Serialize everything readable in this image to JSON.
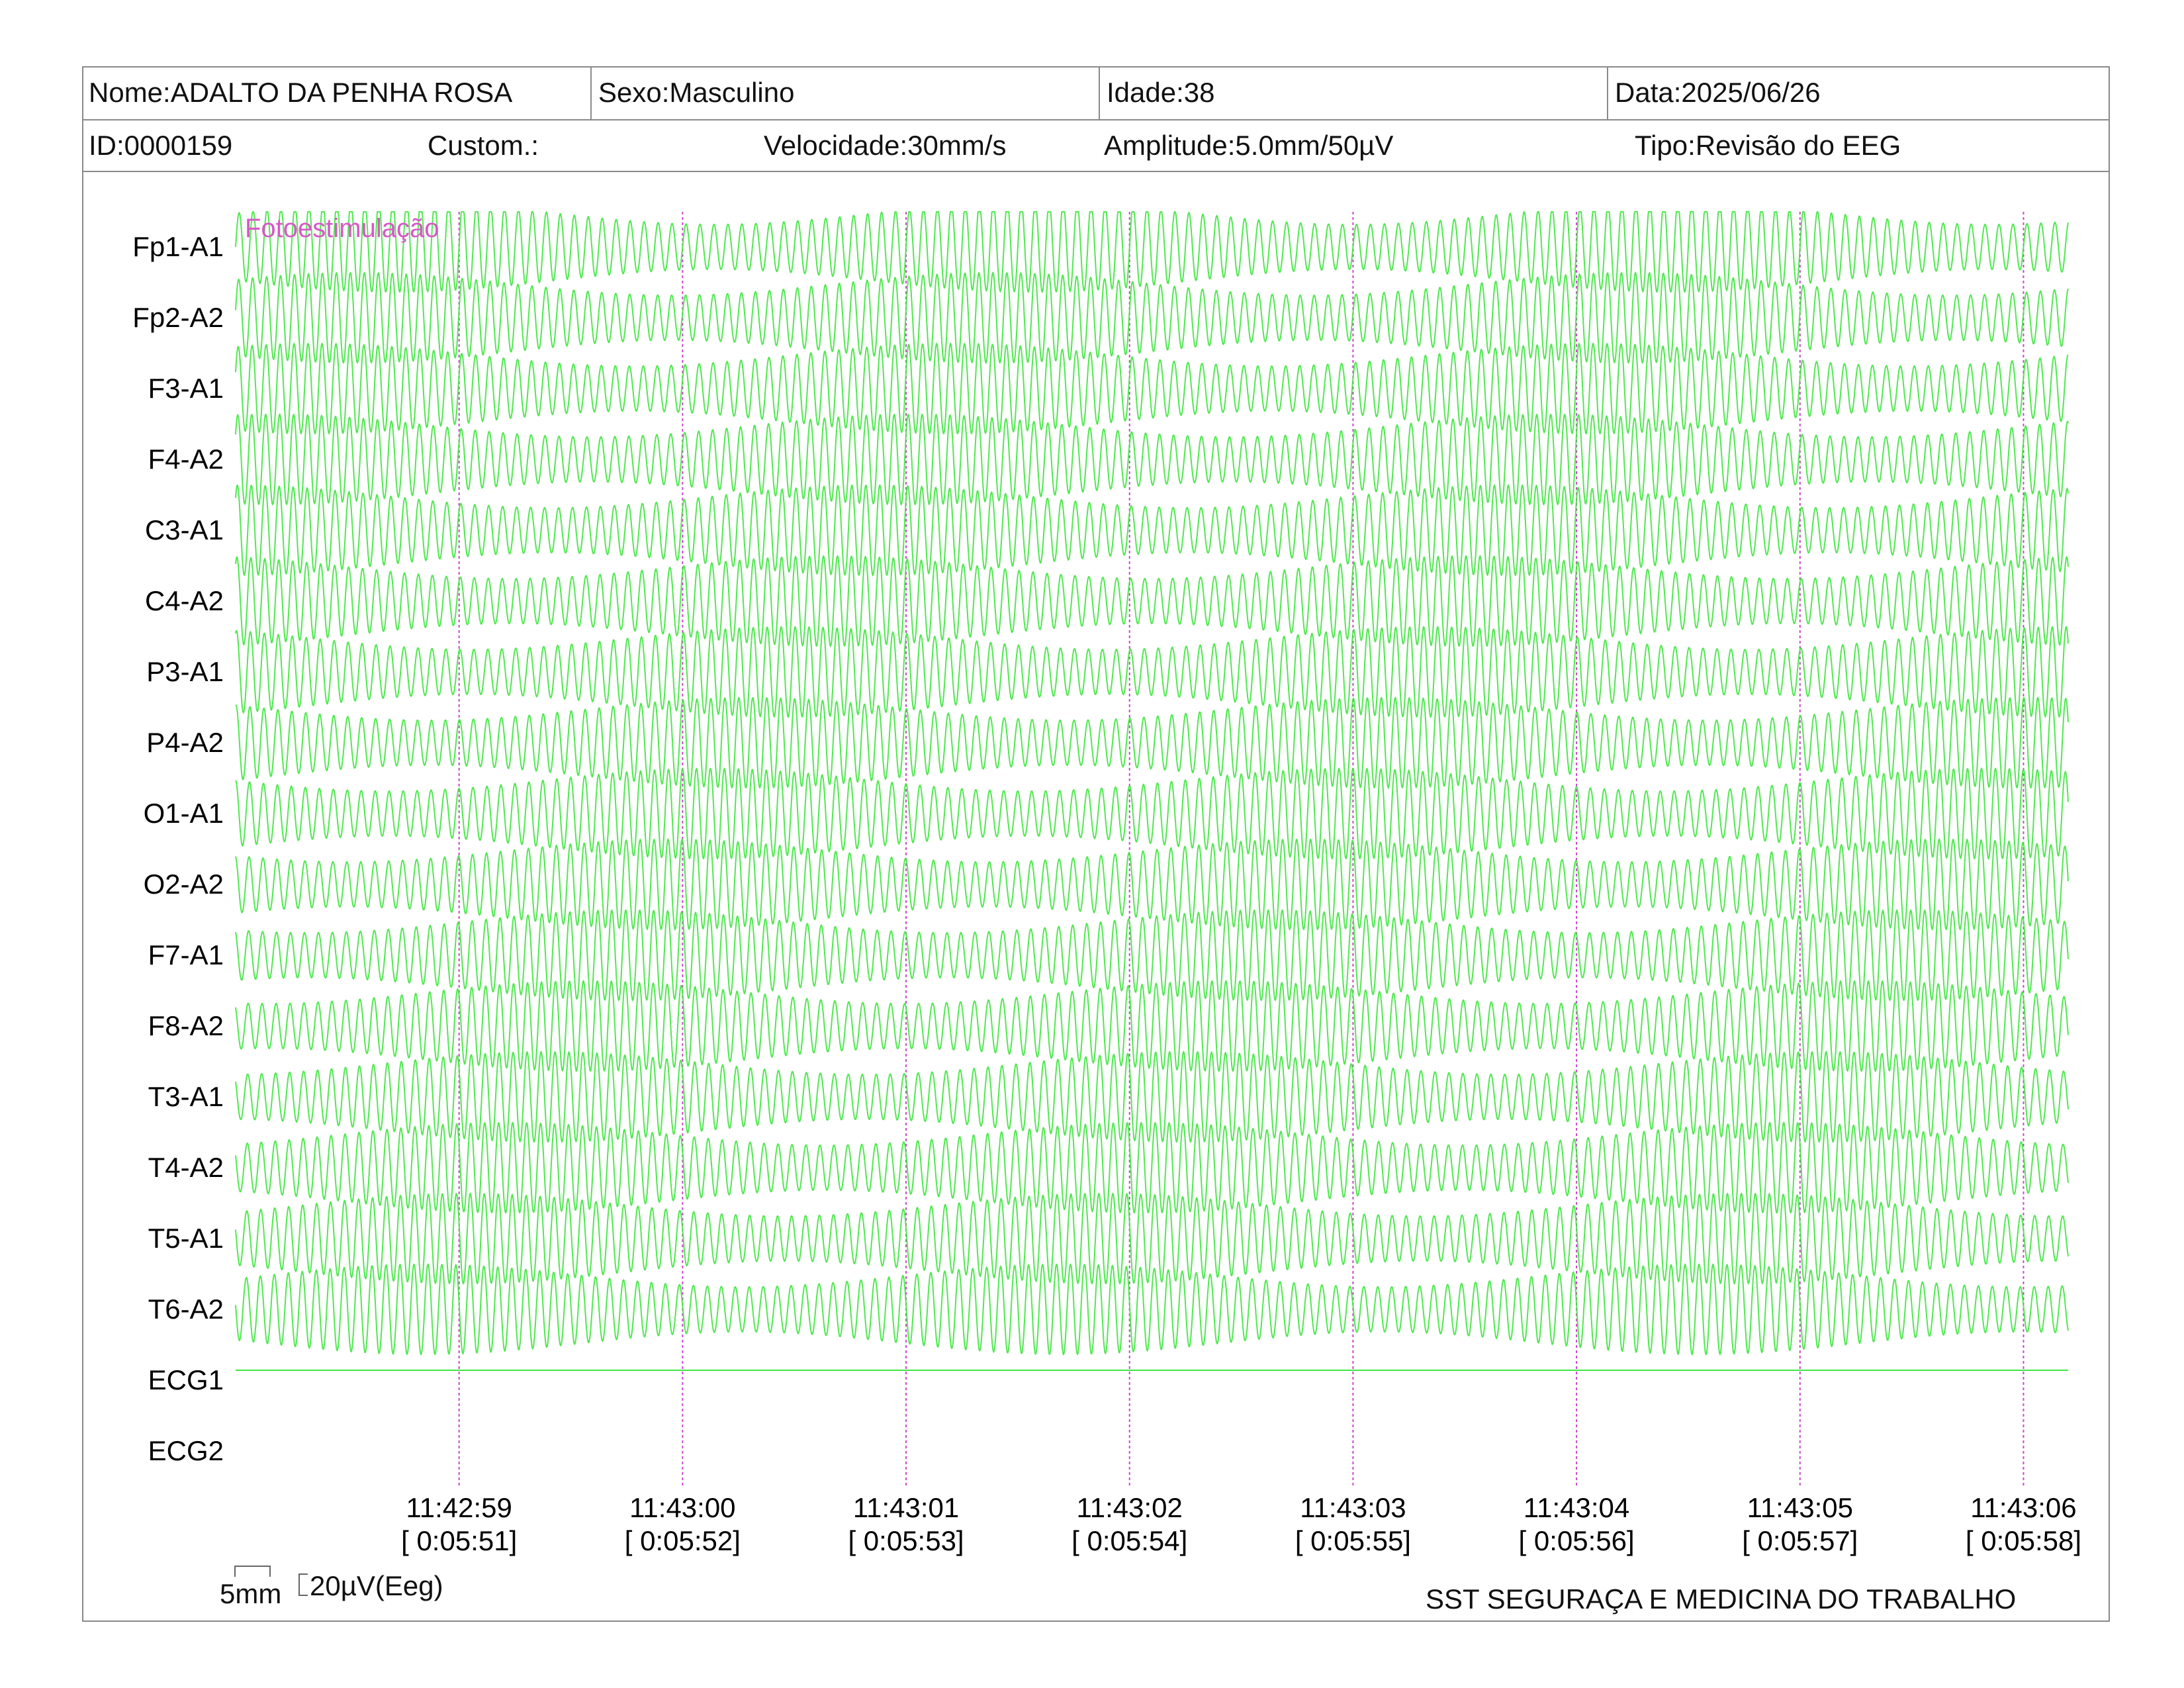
{
  "header": {
    "nome": "Nome:ADALTO DA PENHA ROSA",
    "sexo": "Sexo:Masculino",
    "idade": "Idade:38",
    "data": "Data:2025/06/26",
    "id": "ID:0000159",
    "custom": "Custom.:",
    "velocidade": "Velocidade:30mm/s",
    "amplitude": "Amplitude:5.0mm/50µV",
    "tipo": "Tipo:Revisão do EEG"
  },
  "annotation": "Fotoestimulação",
  "footer": {
    "scale_mm": "5mm",
    "scale_uv": "20µV(Eeg)",
    "company": "SST SEGURAÇA E MEDICINA DO TRABALHO"
  },
  "colors": {
    "trace": "#3ee63e",
    "marker": "#cc44cc",
    "annotation": "#d957c8",
    "border": "#8a8a8a"
  },
  "chart_data": {
    "type": "line",
    "channels": [
      "Fp1-A1",
      "Fp2-A2",
      "F3-A1",
      "F4-A2",
      "C3-A1",
      "C4-A2",
      "P3-A1",
      "P4-A2",
      "O1-A1",
      "O2-A2",
      "F7-A1",
      "F8-A2",
      "T3-A1",
      "T4-A2",
      "T5-A1",
      "T6-A2",
      "ECG1",
      "ECG2"
    ],
    "time_ticks": [
      {
        "clock": "11:42:59",
        "elapsed": "[ 0:05:51]"
      },
      {
        "clock": "11:43:00",
        "elapsed": "[ 0:05:52]"
      },
      {
        "clock": "11:43:01",
        "elapsed": "[ 0:05:53]"
      },
      {
        "clock": "11:43:02",
        "elapsed": "[ 0:05:54]"
      },
      {
        "clock": "11:43:03",
        "elapsed": "[ 0:05:55]"
      },
      {
        "clock": "11:43:04",
        "elapsed": "[ 0:05:56]"
      },
      {
        "clock": "11:43:05",
        "elapsed": "[ 0:05:57]"
      },
      {
        "clock": "11:43:06",
        "elapsed": "[ 0:05:58]"
      }
    ],
    "x_range_seconds": [
      0,
      8.2
    ],
    "eeg_frequency_hz": 16,
    "photic_stimulation": true
  }
}
